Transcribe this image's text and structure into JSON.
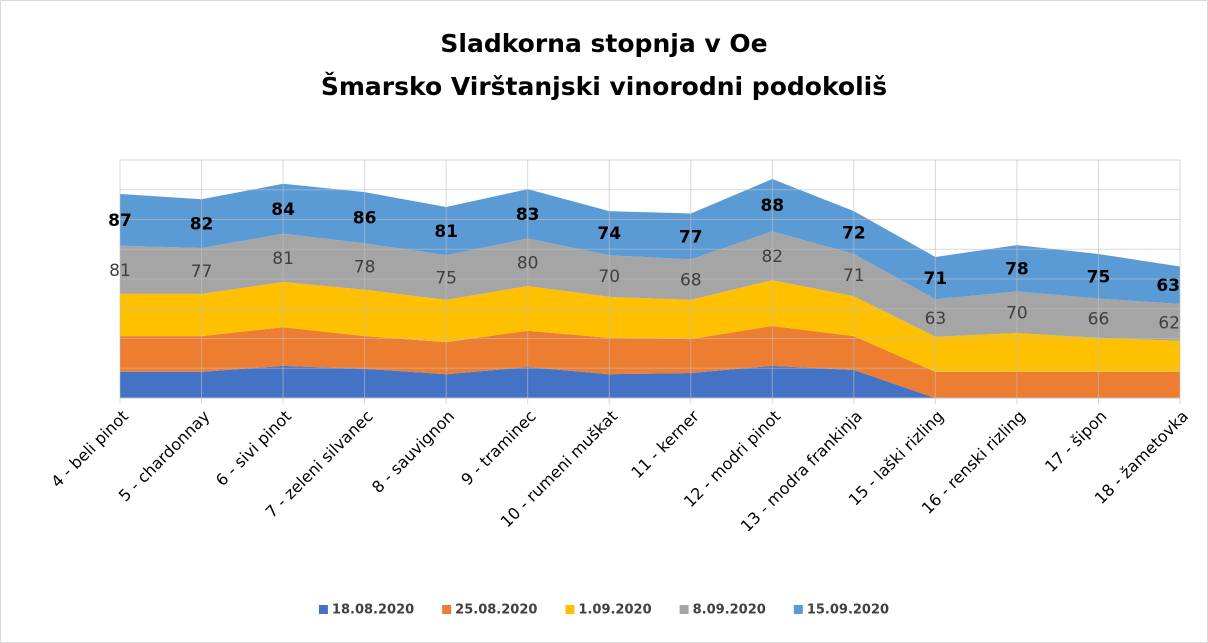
{
  "chart_data": {
    "type": "stacked_area",
    "title": [
      "Sladkorna stopnja v Oe",
      "Šmarsko Virštanjski vinorodni podokoliš"
    ],
    "categories": [
      "4 - beli pinot",
      "5 - chardonnay",
      "6 - sivi pinot",
      "7 - zeleni silvanec",
      "8 - sauvignon",
      "9 - traminec",
      "10 - rumeni muškat",
      "11 - kerner",
      "12 - modri pinot",
      "13 - modra frankinja",
      "15 - laški rizling",
      "16 - renski rizling",
      "17 - šipon",
      "18 - žametovka"
    ],
    "series": [
      {
        "name": "18.08.2020",
        "color": "#4472c4",
        "values": [
          44,
          44,
          54,
          49,
          40,
          52,
          40,
          42,
          54,
          47,
          0,
          0,
          0,
          0
        ],
        "show_labels": false
      },
      {
        "name": "25.08.2020",
        "color": "#ed7d31",
        "values": [
          60,
          60,
          65,
          55,
          54,
          61,
          61,
          57,
          67,
          57,
          44,
          44,
          44,
          44
        ],
        "show_labels": false
      },
      {
        "name": "1.09.2020",
        "color": "#ffc000",
        "values": [
          71,
          71,
          76,
          78,
          71,
          75,
          69,
          66,
          77,
          67,
          59,
          65,
          57,
          52
        ],
        "show_labels": false
      },
      {
        "name": "8.09.2020",
        "color": "#a5a5a5",
        "values": [
          81,
          77,
          81,
          78,
          75,
          80,
          70,
          68,
          82,
          71,
          63,
          70,
          66,
          62
        ],
        "show_labels": true
      },
      {
        "name": "15.09.2020",
        "color": "#5b9bd5",
        "values": [
          87,
          82,
          84,
          86,
          81,
          83,
          74,
          77,
          88,
          72,
          71,
          78,
          75,
          63
        ],
        "show_labels": true,
        "bold_labels": true
      }
    ],
    "ylim": [
      0,
      400
    ],
    "yticks": [
      0,
      50,
      100,
      150,
      200,
      250,
      300,
      350,
      400
    ],
    "grid": true,
    "legend": "bottom"
  }
}
